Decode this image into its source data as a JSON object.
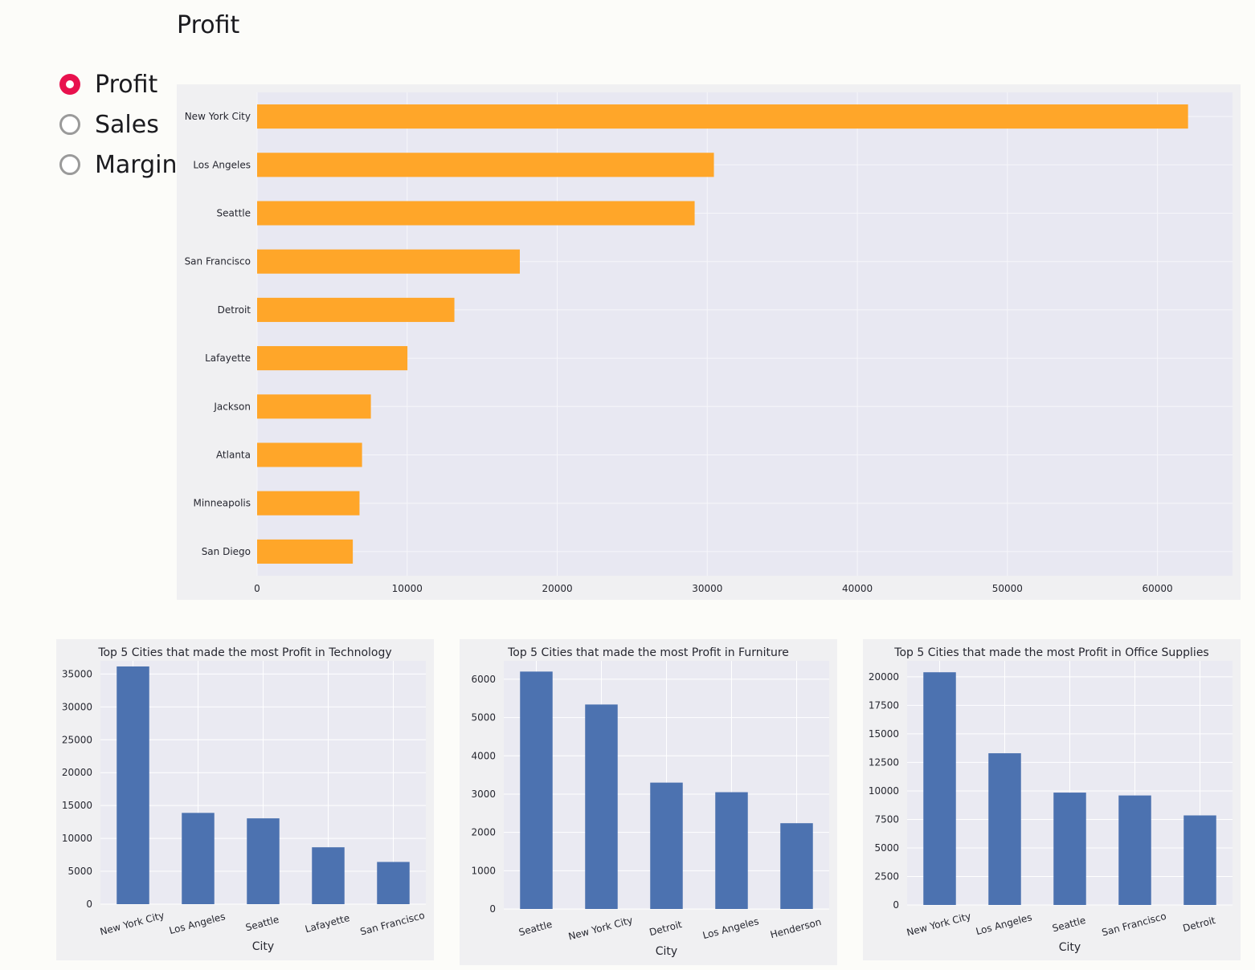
{
  "page": {
    "title": "Profit"
  },
  "metric_selector": {
    "options": [
      "Profit",
      "Sales",
      "Margin"
    ],
    "selected_index": 0,
    "selected_color": "#e8114d"
  },
  "chart_data": [
    {
      "type": "bar",
      "orientation": "horizontal",
      "categories": [
        "New York City",
        "Los Angeles",
        "Seattle",
        "San Francisco",
        "Detroit",
        "Lafayette",
        "Jackson",
        "Atlanta",
        "Minneapolis",
        "San Diego"
      ],
      "values": [
        62037,
        30441,
        29157,
        17507,
        13147,
        10018,
        7582,
        6993,
        6824,
        6378
      ],
      "xlim": [
        0,
        65000
      ],
      "xticks": [
        0,
        10000,
        20000,
        30000,
        40000,
        50000,
        60000
      ],
      "color": "#ffa629",
      "grid": true,
      "title": "",
      "xlabel": "",
      "ylabel": ""
    },
    {
      "type": "bar",
      "title": "Top 5 Cities that made the most Profit in Technology",
      "xlabel": "City",
      "ylabel": "",
      "categories": [
        "New York City",
        "Los Angeles",
        "Seattle",
        "Lafayette",
        "San Francisco"
      ],
      "values": [
        36150,
        13880,
        13050,
        8650,
        6420
      ],
      "ylim": [
        0,
        37000
      ],
      "yticks": [
        0,
        5000,
        10000,
        15000,
        20000,
        25000,
        30000,
        35000
      ],
      "color": "#4c72b0",
      "grid": true
    },
    {
      "type": "bar",
      "title": "Top 5 Cities that made the most Profit in Furniture",
      "xlabel": "City",
      "ylabel": "",
      "categories": [
        "Seattle",
        "New York City",
        "Detroit",
        "Los Angeles",
        "Henderson"
      ],
      "values": [
        6200,
        5340,
        3300,
        3050,
        2240
      ],
      "ylim": [
        0,
        6480
      ],
      "yticks": [
        0,
        1000,
        2000,
        3000,
        4000,
        5000,
        6000
      ],
      "color": "#4c72b0",
      "grid": true
    },
    {
      "type": "bar",
      "title": "Top 5 Cities that made the most Profit in Office Supplies",
      "xlabel": "City",
      "ylabel": "",
      "categories": [
        "New York City",
        "Los Angeles",
        "Seattle",
        "San Francisco",
        "Detroit"
      ],
      "values": [
        20400,
        13300,
        9850,
        9600,
        7850
      ],
      "ylim": [
        0,
        21400
      ],
      "yticks": [
        0,
        2500,
        5000,
        7500,
        10000,
        12500,
        15000,
        17500,
        20000
      ],
      "color": "#4c72b0",
      "grid": true
    }
  ]
}
